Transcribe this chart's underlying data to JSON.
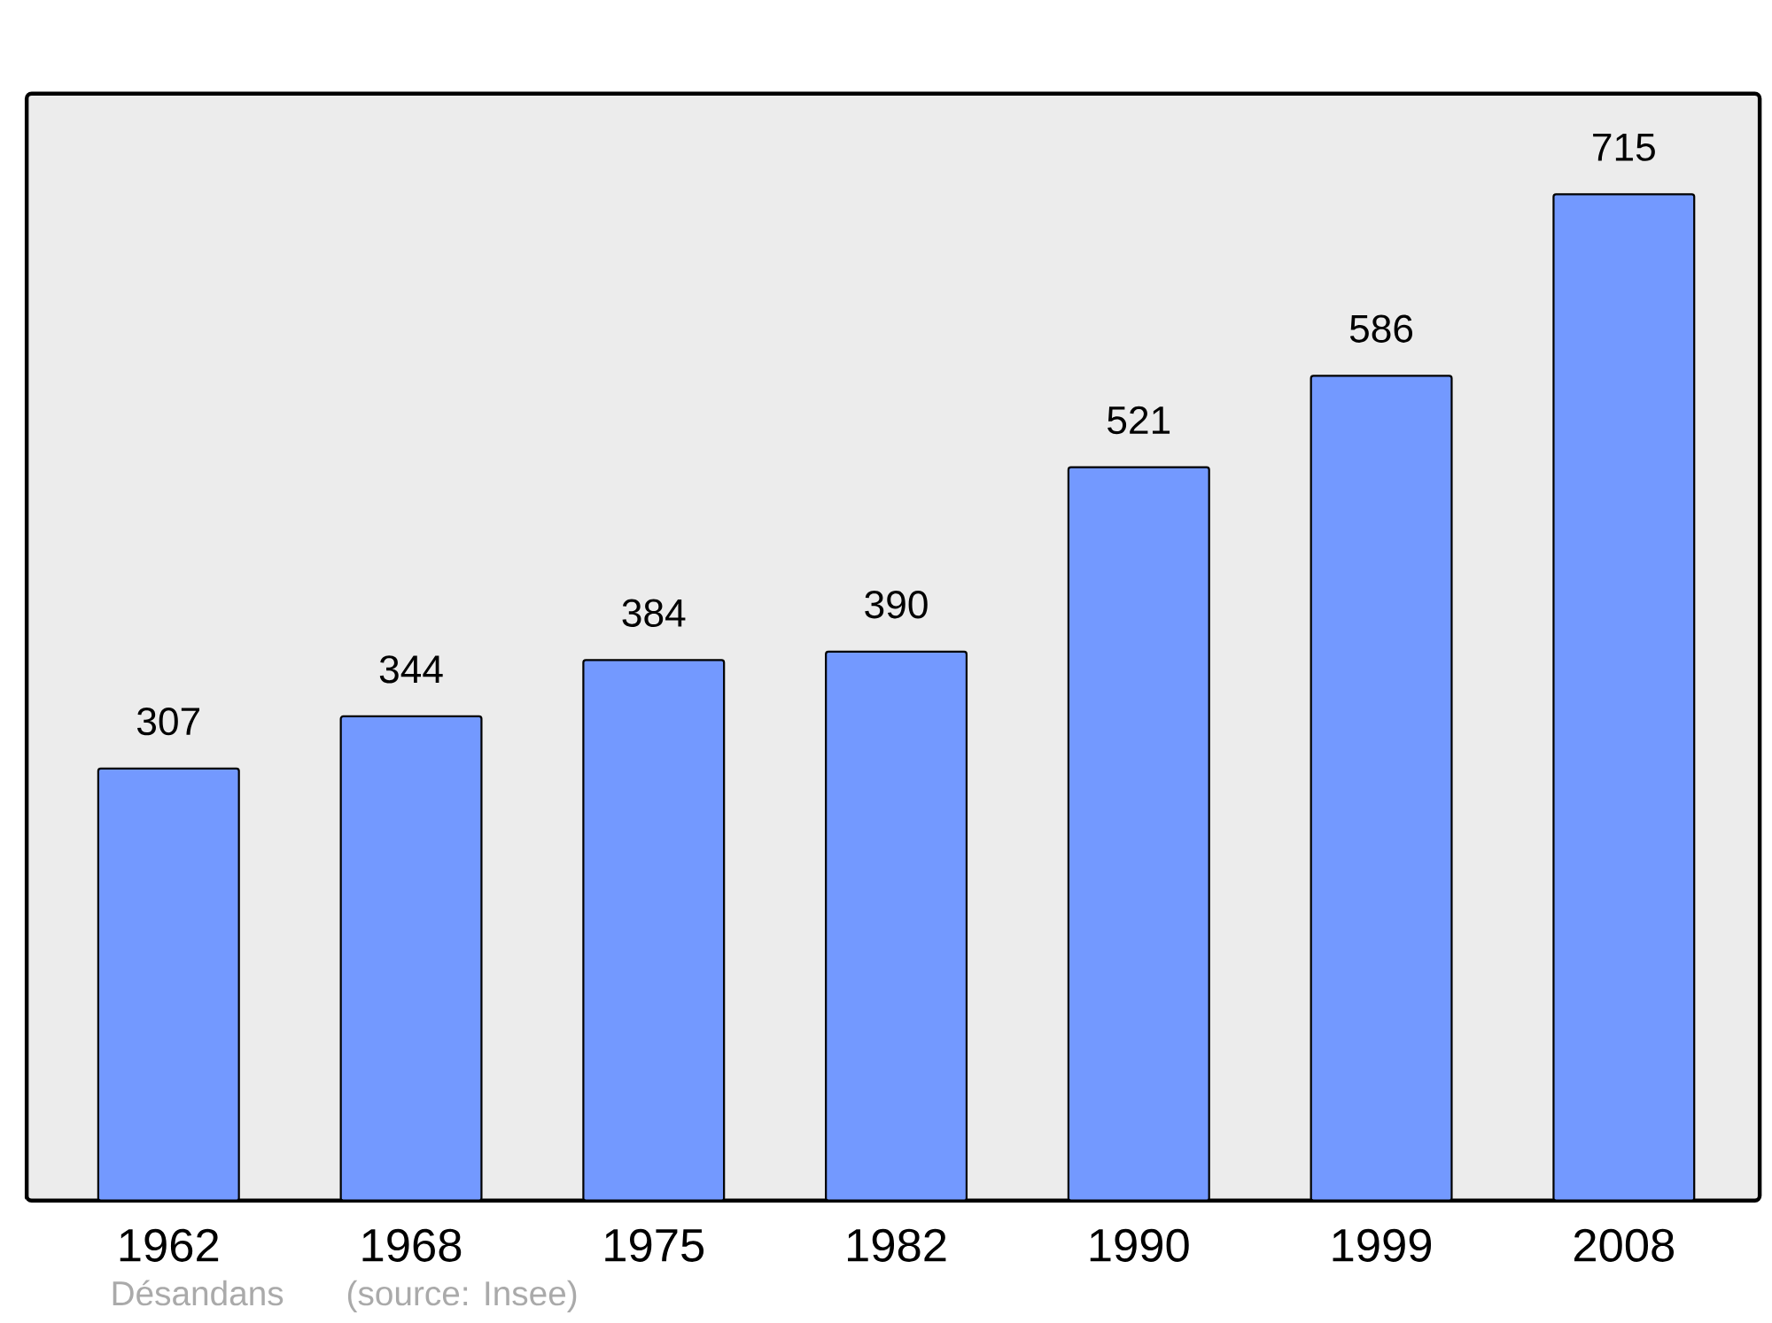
{
  "chart_data": {
    "type": "bar",
    "categories": [
      "1962",
      "1968",
      "1975",
      "1982",
      "1990",
      "1999",
      "2008"
    ],
    "values": [
      307,
      344,
      384,
      390,
      521,
      586,
      715
    ],
    "color": "#7399ff",
    "data_labels": true,
    "annotations": [
      "Désandans",
      "(source: Insee)"
    ]
  }
}
